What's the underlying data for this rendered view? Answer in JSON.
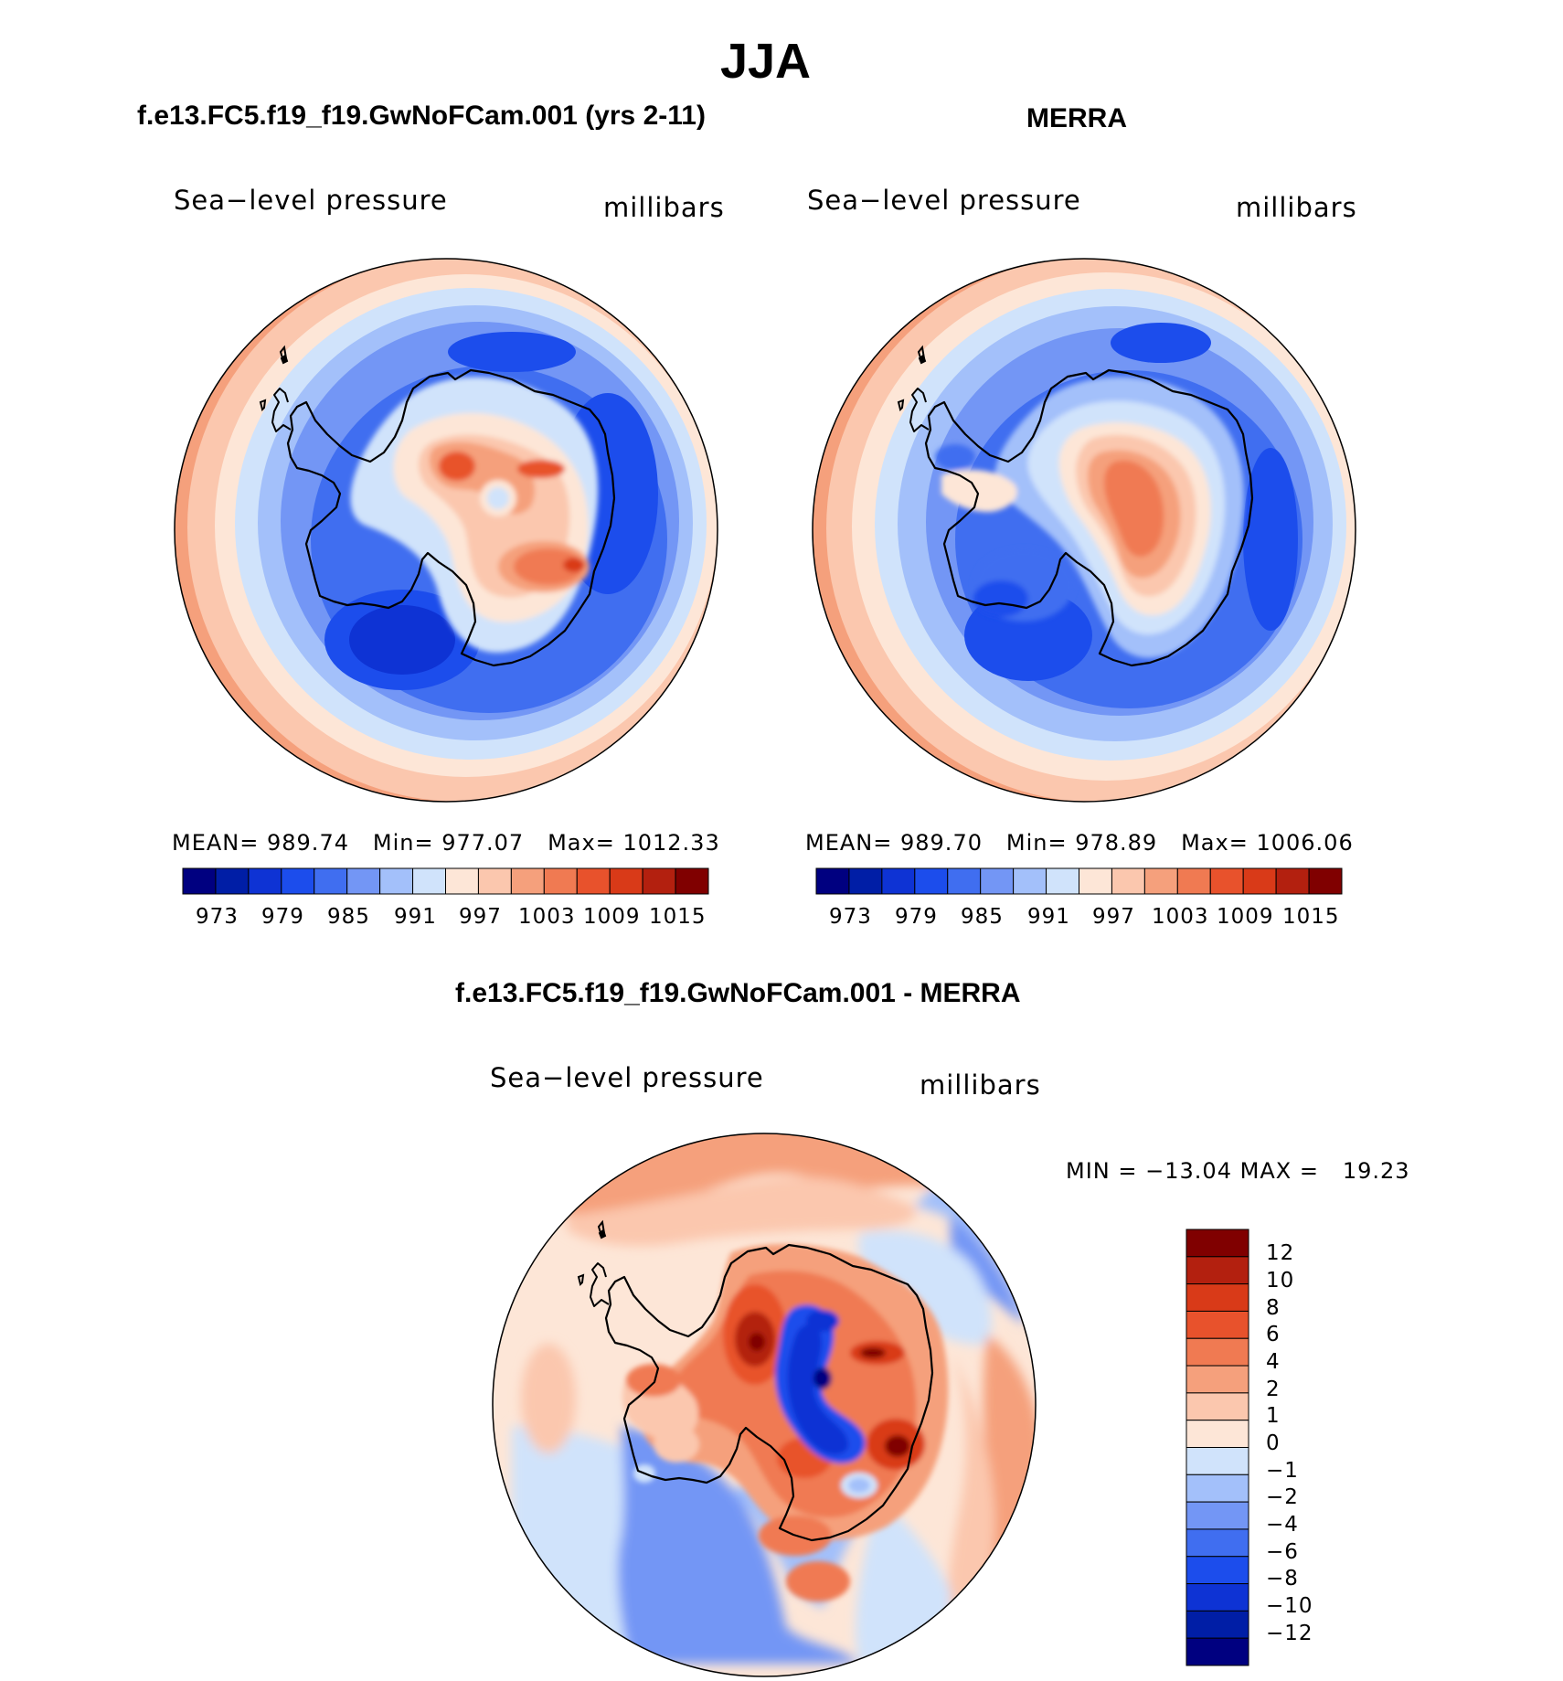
{
  "title": "JJA",
  "panels": {
    "model": {
      "title": "f.e13.FC5.f19_f19.GwNoFCam.001 (yrs 2-11)",
      "variable": "Sea−level pressure",
      "units": "millibars",
      "stats": {
        "mean_label": "MEAN=",
        "mean": "989.74",
        "min_label": "Min=",
        "min": "977.07",
        "max_label": "Max=",
        "max": "1012.33"
      }
    },
    "obs": {
      "title": "MERRA",
      "variable": "Sea−level pressure",
      "units": "millibars",
      "stats": {
        "mean_label": "MEAN=",
        "mean": "989.70",
        "min_label": "Min=",
        "min": "978.89",
        "max_label": "Max=",
        "max": "1006.06"
      }
    },
    "diff": {
      "title": "f.e13.FC5.f19_f19.GwNoFCam.001 - MERRA",
      "variable": "Sea−level pressure",
      "units": "millibars",
      "stats": {
        "min_label": "MIN",
        "eq": "=",
        "min": "−13.04",
        "max_label": "MAX",
        "max": "19.23"
      }
    }
  },
  "colorbars": {
    "absolute": {
      "tick_labels": [
        "973",
        "979",
        "985",
        "991",
        "997",
        "1003",
        "1009",
        "1015"
      ],
      "colors": [
        "#000080",
        "#001ea6",
        "#0e33d4",
        "#1c4dec",
        "#406ef0",
        "#7396f5",
        "#a3c0fa",
        "#d0e3fb",
        "#fde6d7",
        "#fbc7ae",
        "#f5a07c",
        "#f07a52",
        "#e8522c",
        "#d93a18",
        "#b3200f",
        "#800000"
      ]
    },
    "difference": {
      "tick_labels": [
        "12",
        "10",
        "8",
        "6",
        "4",
        "2",
        "1",
        "0",
        "−1",
        "−2",
        "−4",
        "−6",
        "−8",
        "−10",
        "−12"
      ],
      "colors": [
        "#800000",
        "#b3200f",
        "#d93a18",
        "#e8522c",
        "#f07a52",
        "#f5a07c",
        "#fbc7ae",
        "#fde6d7",
        "#d0e3fb",
        "#a3c0fa",
        "#7396f5",
        "#406ef0",
        "#1c4dec",
        "#0e33d4",
        "#001ea6",
        "#000080"
      ]
    }
  }
}
